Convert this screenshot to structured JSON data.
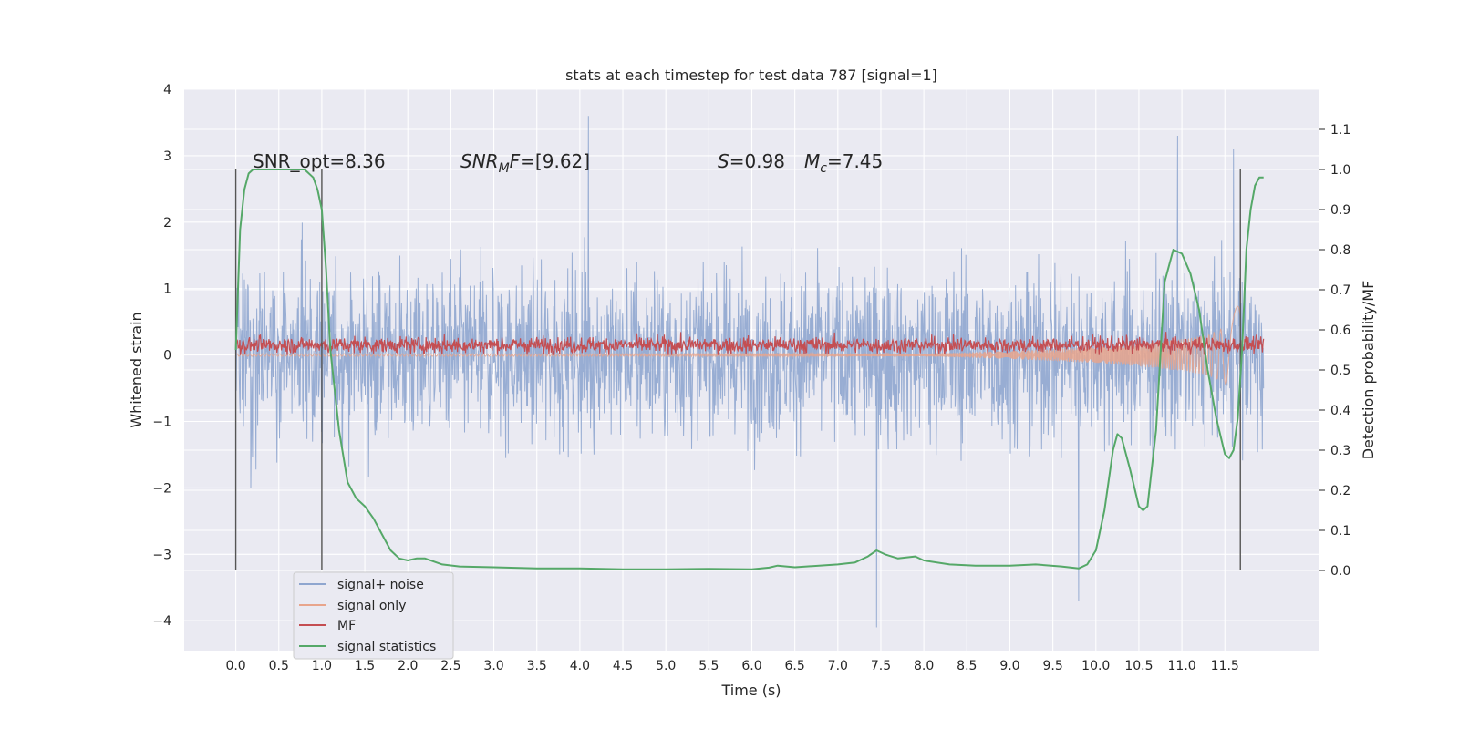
{
  "chart_data": {
    "type": "line",
    "title": "stats at each timestep for test data 787 [signal=1]",
    "xlabel": "Time (s)",
    "ylabel": "Whitened strain",
    "y2label": "Detection probability/MF",
    "xlim": [
      -0.6,
      12.6
    ],
    "ylim": [
      -4.45,
      4.0
    ],
    "y2lim": [
      -0.2,
      1.2
    ],
    "x_ticks": [
      "0.0",
      "0.5",
      "1.0",
      "1.5",
      "2.0",
      "2.5",
      "3.0",
      "3.5",
      "4.0",
      "4.5",
      "5.0",
      "5.5",
      "6.0",
      "6.5",
      "7.0",
      "7.5",
      "8.0",
      "8.5",
      "9.0",
      "9.5",
      "10.0",
      "10.5",
      "11.0",
      "11.5"
    ],
    "y_ticks": [
      "4",
      "3",
      "2",
      "1",
      "0",
      "−1",
      "−2",
      "−3",
      "−4"
    ],
    "y2_ticks": [
      "0.0",
      "0.1",
      "0.2",
      "0.3",
      "0.4",
      "0.5",
      "0.6",
      "0.7",
      "0.8",
      "0.9",
      "1.0",
      "1.1"
    ],
    "grid": true,
    "legend_position": "lower-left",
    "annotations": {
      "snr_opt": "SNR_opt=8.36",
      "snr_mf": "SNR_MF=[9.62]",
      "s_val": "S=0.98",
      "mc_val": "M_c=7.45"
    },
    "vertical_markers_x": [
      0.0,
      1.0,
      11.68
    ],
    "time_span": [
      0.0,
      11.95
    ],
    "series": [
      {
        "name": "signal+ noise",
        "color": "#8fa6cf",
        "envelope_band": [
          -1.6,
          1.6
        ],
        "notable_peaks": [
          [
            4.1,
            3.6
          ],
          [
            10.95,
            3.3
          ],
          [
            11.6,
            3.1
          ],
          [
            7.45,
            -4.1
          ],
          [
            9.8,
            -3.7
          ]
        ]
      },
      {
        "name": "signal only",
        "color": "#e8a58c",
        "envelope": {
          "x": [
            8.0,
            9.0,
            10.0,
            10.5,
            11.0,
            11.3,
            11.5,
            11.6,
            11.68
          ],
          "y": [
            0.02,
            0.06,
            0.12,
            0.17,
            0.24,
            0.3,
            0.42,
            0.65,
            0.95
          ]
        }
      },
      {
        "name": "MF",
        "color": "#c44e52",
        "band": [
          0.0,
          0.3
        ]
      },
      {
        "name": "signal statistics",
        "color": "#55a868",
        "axis": "right",
        "x": [
          0.0,
          0.05,
          0.1,
          0.15,
          0.2,
          0.3,
          0.5,
          0.8,
          0.9,
          0.95,
          1.0,
          1.05,
          1.1,
          1.2,
          1.3,
          1.4,
          1.5,
          1.6,
          1.7,
          1.8,
          1.9,
          2.0,
          2.1,
          2.2,
          2.4,
          2.6,
          3.0,
          3.5,
          4.0,
          4.5,
          5.0,
          5.5,
          6.0,
          6.2,
          6.3,
          6.5,
          7.0,
          7.2,
          7.35,
          7.45,
          7.55,
          7.7,
          7.9,
          8.0,
          8.3,
          8.6,
          9.0,
          9.3,
          9.6,
          9.8,
          9.9,
          10.0,
          10.1,
          10.2,
          10.25,
          10.3,
          10.4,
          10.5,
          10.55,
          10.6,
          10.7,
          10.8,
          10.9,
          11.0,
          11.1,
          11.2,
          11.3,
          11.4,
          11.5,
          11.55,
          11.6,
          11.65,
          11.7,
          11.75,
          11.8,
          11.85,
          11.9,
          11.95
        ],
        "y": [
          0.55,
          0.85,
          0.95,
          0.99,
          1.0,
          1.0,
          1.0,
          1.0,
          0.98,
          0.95,
          0.9,
          0.75,
          0.55,
          0.35,
          0.22,
          0.18,
          0.16,
          0.13,
          0.09,
          0.05,
          0.03,
          0.025,
          0.03,
          0.03,
          0.015,
          0.01,
          0.008,
          0.005,
          0.005,
          0.003,
          0.003,
          0.004,
          0.003,
          0.007,
          0.012,
          0.008,
          0.015,
          0.02,
          0.035,
          0.05,
          0.04,
          0.03,
          0.035,
          0.025,
          0.015,
          0.012,
          0.012,
          0.015,
          0.01,
          0.005,
          0.015,
          0.05,
          0.15,
          0.3,
          0.34,
          0.33,
          0.25,
          0.16,
          0.15,
          0.16,
          0.35,
          0.72,
          0.8,
          0.79,
          0.74,
          0.65,
          0.5,
          0.38,
          0.29,
          0.28,
          0.3,
          0.38,
          0.55,
          0.8,
          0.9,
          0.96,
          0.98,
          0.98
        ]
      }
    ]
  }
}
